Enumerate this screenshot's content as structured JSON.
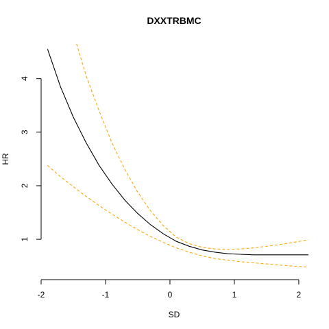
{
  "chart_data": {
    "type": "line",
    "title": "DXXTRBMC",
    "xlabel": "SD",
    "ylabel": "HR",
    "xlim": [
      -2.0,
      2.15
    ],
    "ylim": [
      0.4,
      4.7
    ],
    "x_ticks": [
      -2,
      -1,
      0,
      1,
      2
    ],
    "y_ticks": [
      1,
      2,
      3,
      4
    ],
    "x_tick_labels": [
      "-2",
      "-1",
      "0",
      "1",
      "2"
    ],
    "y_tick_labels": [
      "1",
      "2",
      "3",
      "4"
    ],
    "grid": false,
    "legend": "none",
    "series": [
      {
        "color": "#000000",
        "style": "solid",
        "x": [
          -1.9,
          -1.7,
          -1.5,
          -1.3,
          -1.1,
          -0.9,
          -0.7,
          -0.5,
          -0.3,
          -0.1,
          0.1,
          0.3,
          0.5,
          0.7,
          0.9,
          1.1,
          1.3,
          1.5,
          1.7,
          1.9,
          2.15
        ],
        "y": [
          4.55,
          3.85,
          3.28,
          2.8,
          2.38,
          2.03,
          1.73,
          1.48,
          1.27,
          1.1,
          0.96,
          0.87,
          0.8,
          0.76,
          0.73,
          0.72,
          0.71,
          0.71,
          0.71,
          0.71,
          0.71
        ]
      },
      {
        "color": "#FFA500",
        "style": "dashed",
        "x": [
          -1.45,
          -1.3,
          -1.1,
          -0.9,
          -0.7,
          -0.5,
          -0.3,
          -0.1,
          0.1,
          0.3,
          0.5,
          0.7,
          0.9,
          1.1,
          1.3,
          1.5,
          1.7,
          1.9,
          2.15
        ],
        "y": [
          4.65,
          4.05,
          3.4,
          2.8,
          2.3,
          1.88,
          1.53,
          1.25,
          1.04,
          0.92,
          0.85,
          0.82,
          0.81,
          0.82,
          0.84,
          0.87,
          0.9,
          0.94,
          0.99
        ]
      },
      {
        "color": "#FFA500",
        "style": "dashed",
        "x": [
          -1.9,
          -1.7,
          -1.5,
          -1.3,
          -1.1,
          -0.9,
          -0.7,
          -0.5,
          -0.3,
          -0.1,
          0.1,
          0.3,
          0.5,
          0.7,
          0.9,
          1.1,
          1.3,
          1.5,
          1.7,
          1.9,
          2.15
        ],
        "y": [
          2.38,
          2.17,
          1.98,
          1.8,
          1.63,
          1.47,
          1.32,
          1.18,
          1.05,
          0.94,
          0.84,
          0.76,
          0.69,
          0.64,
          0.61,
          0.58,
          0.56,
          0.54,
          0.52,
          0.5,
          0.48
        ]
      }
    ]
  }
}
